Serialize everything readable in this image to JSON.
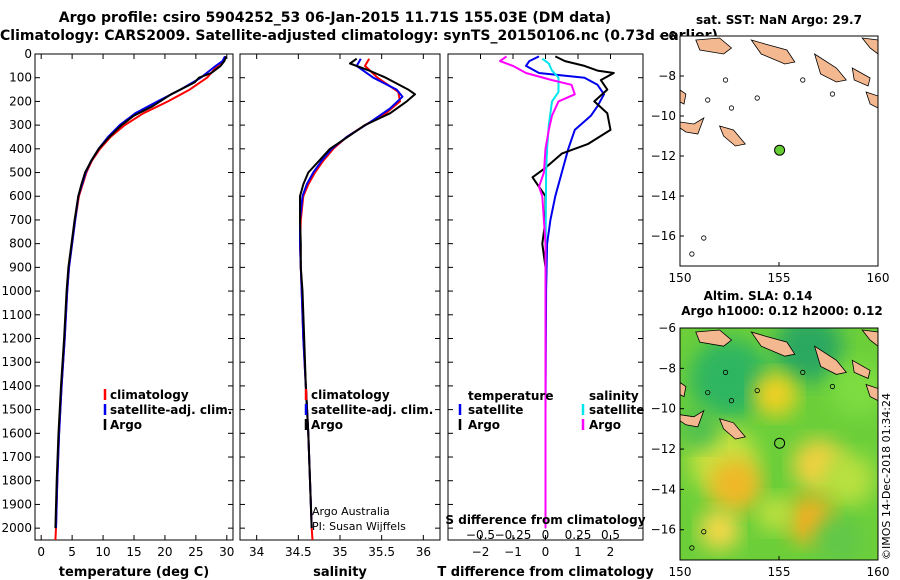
{
  "header": {
    "line1": "Argo profile: csiro 5904252_53 06-Jan-2015 11.71S 155.03E (DM data)",
    "line2": "Climatology: CARS2009. Satellite-adjusted climatology: synTS_20150106.nc (0.73d earlier)"
  },
  "colors": {
    "climatology": "#ff0000",
    "satellite": "#0000ee",
    "argo": "#000000",
    "satellite_light": "#00e5ee",
    "argo_diff": "#ff00ff",
    "land": "#f4b890"
  },
  "chart_data": [
    {
      "id": "temperature",
      "type": "line",
      "xlabel": "temperature (deg C)",
      "ylabel": "",
      "xlim": [
        -1,
        31
      ],
      "ylim": [
        2050,
        0
      ],
      "xticks": [
        0,
        5,
        10,
        15,
        20,
        25,
        30
      ],
      "yticks": [
        0,
        100,
        200,
        300,
        400,
        500,
        600,
        700,
        800,
        900,
        1000,
        1100,
        1200,
        1300,
        1400,
        1500,
        1600,
        1700,
        1800,
        1900,
        2000
      ],
      "legend": [
        "climatology",
        "satellite-adj. clim.",
        "Argo"
      ],
      "series": [
        {
          "name": "climatology",
          "color": "#ff0000",
          "points": [
            [
              29.8,
              10
            ],
            [
              29.4,
              30
            ],
            [
              28.5,
              50
            ],
            [
              26.8,
              100
            ],
            [
              24,
              150
            ],
            [
              20.5,
              200
            ],
            [
              16.5,
              250
            ],
            [
              13.5,
              300
            ],
            [
              11.2,
              350
            ],
            [
              9.5,
              400
            ],
            [
              8.2,
              450
            ],
            [
              7.3,
              500
            ],
            [
              6.7,
              550
            ],
            [
              6.1,
              600
            ],
            [
              5.5,
              700
            ],
            [
              5,
              800
            ],
            [
              4.5,
              900
            ],
            [
              4.2,
              1000
            ],
            [
              3.8,
              1200
            ],
            [
              3.3,
              1400
            ],
            [
              2.9,
              1600
            ],
            [
              2.6,
              1800
            ],
            [
              2.4,
              2000
            ],
            [
              2.3,
              2050
            ]
          ]
        },
        {
          "name": "satellite-adj. clim.",
          "color": "#0000ee",
          "points": [
            [
              29.7,
              10
            ],
            [
              29.3,
              30
            ],
            [
              28.2,
              50
            ],
            [
              25.8,
              100
            ],
            [
              22.5,
              150
            ],
            [
              18.8,
              200
            ],
            [
              15.2,
              250
            ],
            [
              12.7,
              300
            ],
            [
              10.8,
              350
            ],
            [
              9.3,
              400
            ],
            [
              8.1,
              450
            ],
            [
              7.2,
              500
            ],
            [
              6.6,
              550
            ],
            [
              6.0,
              600
            ],
            [
              5.5,
              700
            ],
            [
              5,
              800
            ],
            [
              4.5,
              900
            ],
            [
              4.2,
              1000
            ],
            [
              3.8,
              1200
            ],
            [
              3.3,
              1400
            ],
            [
              2.9,
              1600
            ],
            [
              2.6,
              1800
            ],
            [
              2.4,
              2000
            ]
          ]
        },
        {
          "name": "Argo",
          "color": "#000000",
          "points": [
            [
              29.9,
              10
            ],
            [
              29.6,
              30
            ],
            [
              29,
              50
            ],
            [
              27.5,
              80
            ],
            [
              25.5,
              100
            ],
            [
              24.8,
              120
            ],
            [
              21,
              170
            ],
            [
              18,
              220
            ],
            [
              15,
              260
            ],
            [
              13,
              300
            ],
            [
              11,
              350
            ],
            [
              9.3,
              400
            ],
            [
              8.1,
              450
            ],
            [
              7.1,
              500
            ],
            [
              6.5,
              550
            ],
            [
              6.0,
              600
            ],
            [
              5.4,
              700
            ],
            [
              4.9,
              800
            ],
            [
              4.4,
              900
            ],
            [
              4.1,
              1000
            ],
            [
              3.7,
              1200
            ],
            [
              3.2,
              1400
            ],
            [
              2.8,
              1600
            ],
            [
              2.5,
              1800
            ],
            [
              2.3,
              2000
            ]
          ]
        }
      ]
    },
    {
      "id": "salinity",
      "type": "line",
      "xlabel": "salinity",
      "xlim": [
        33.8,
        36.2
      ],
      "ylim": [
        2050,
        0
      ],
      "xticks": [
        34,
        34.5,
        35,
        35.5,
        36
      ],
      "legend": [
        "climatology",
        "satellite-adj. clim.",
        "Argo"
      ],
      "series": [
        {
          "name": "climatology",
          "color": "#ff0000",
          "points": [
            [
              35.35,
              20
            ],
            [
              35.3,
              50
            ],
            [
              35.45,
              100
            ],
            [
              35.7,
              160
            ],
            [
              35.72,
              200
            ],
            [
              35.55,
              250
            ],
            [
              35.3,
              300
            ],
            [
              35.08,
              350
            ],
            [
              34.92,
              400
            ],
            [
              34.8,
              450
            ],
            [
              34.7,
              500
            ],
            [
              34.62,
              550
            ],
            [
              34.56,
              600
            ],
            [
              34.53,
              700
            ],
            [
              34.52,
              800
            ],
            [
              34.53,
              900
            ],
            [
              34.54,
              1000
            ],
            [
              34.56,
              1200
            ],
            [
              34.59,
              1400
            ],
            [
              34.62,
              1600
            ],
            [
              34.64,
              1800
            ],
            [
              34.66,
              2000
            ],
            [
              34.67,
              2050
            ]
          ]
        },
        {
          "name": "satellite-adj. clim.",
          "color": "#0000ee",
          "points": [
            [
              35.25,
              20
            ],
            [
              35.2,
              50
            ],
            [
              35.4,
              100
            ],
            [
              35.68,
              150
            ],
            [
              35.75,
              180
            ],
            [
              35.6,
              230
            ],
            [
              35.35,
              290
            ],
            [
              35.08,
              350
            ],
            [
              34.9,
              400
            ],
            [
              34.78,
              450
            ],
            [
              34.68,
              500
            ],
            [
              34.6,
              550
            ],
            [
              34.55,
              600
            ],
            [
              34.52,
              700
            ],
            [
              34.52,
              800
            ],
            [
              34.53,
              900
            ],
            [
              34.54,
              1000
            ],
            [
              34.56,
              1200
            ],
            [
              34.59,
              1400
            ],
            [
              34.62,
              1600
            ],
            [
              34.64,
              1800
            ],
            [
              34.66,
              2000
            ]
          ]
        },
        {
          "name": "Argo",
          "color": "#000000",
          "points": [
            [
              35.2,
              20
            ],
            [
              35.12,
              40
            ],
            [
              35.35,
              70
            ],
            [
              35.55,
              100
            ],
            [
              35.82,
              150
            ],
            [
              35.9,
              170
            ],
            [
              35.8,
              200
            ],
            [
              35.6,
              250
            ],
            [
              35.3,
              300
            ],
            [
              35.05,
              360
            ],
            [
              34.88,
              400
            ],
            [
              34.75,
              450
            ],
            [
              34.62,
              500
            ],
            [
              34.56,
              550
            ],
            [
              34.52,
              600
            ],
            [
              34.52,
              700
            ],
            [
              34.53,
              800
            ],
            [
              34.53,
              900
            ],
            [
              34.55,
              1000
            ],
            [
              34.57,
              1200
            ],
            [
              34.59,
              1400
            ],
            [
              34.62,
              1600
            ],
            [
              34.64,
              1800
            ],
            [
              34.66,
              2000
            ]
          ]
        }
      ],
      "annotation": [
        "Argo Australia",
        "PI: Susan Wijffels"
      ]
    },
    {
      "id": "difference",
      "type": "line",
      "xlabel": "T difference from climatology",
      "xlabel_top": "S difference from climatology",
      "xlim": [
        -3,
        3
      ],
      "ylim": [
        2050,
        0
      ],
      "xticks": [
        -2,
        -1,
        0,
        1,
        2
      ],
      "xticks_s": [
        "-0.5",
        "-0.25",
        "0",
        "0.25",
        "0.5"
      ],
      "legend_temperature_title": "temperature",
      "legend_salinity_title": "salinity",
      "legend_labels": [
        "satellite",
        "Argo"
      ],
      "series": [
        {
          "name": "temperature satellite",
          "color": "#0000ee",
          "points": [
            [
              -0.2,
              10
            ],
            [
              -0.5,
              30
            ],
            [
              -0.6,
              50
            ],
            [
              -0.2,
              80
            ],
            [
              1.2,
              100
            ],
            [
              1.6,
              130
            ],
            [
              1.8,
              170
            ],
            [
              1.6,
              220
            ],
            [
              1.4,
              260
            ],
            [
              0.9,
              320
            ],
            [
              0.7,
              400
            ],
            [
              0.5,
              500
            ],
            [
              0.3,
              600
            ],
            [
              0.15,
              700
            ],
            [
              0.05,
              800
            ],
            [
              0.02,
              1000
            ],
            [
              0,
              1500
            ],
            [
              0,
              2000
            ]
          ]
        },
        {
          "name": "temperature Argo",
          "color": "#000000",
          "points": [
            [
              0.3,
              10
            ],
            [
              0.6,
              30
            ],
            [
              1.2,
              50
            ],
            [
              1.6,
              70
            ],
            [
              2.1,
              80
            ],
            [
              1.7,
              110
            ],
            [
              1.9,
              150
            ],
            [
              1.5,
              200
            ],
            [
              1.9,
              250
            ],
            [
              2,
              320
            ],
            [
              1.3,
              380
            ],
            [
              0.5,
              420
            ],
            [
              0,
              480
            ],
            [
              -0.4,
              520
            ],
            [
              -0.2,
              560
            ],
            [
              0,
              600
            ],
            [
              0,
              700
            ],
            [
              -0.1,
              800
            ],
            [
              0,
              900
            ],
            [
              0,
              1000
            ],
            [
              0,
              1500
            ],
            [
              0,
              2000
            ]
          ]
        },
        {
          "name": "salinity satellite",
          "color": "#00e5ee",
          "points": [
            [
              -0.1,
              20
            ],
            [
              0.1,
              40
            ],
            [
              0.2,
              70
            ],
            [
              0.4,
              100
            ],
            [
              0.4,
              160
            ],
            [
              0.2,
              200
            ],
            [
              0.1,
              300
            ],
            [
              0.05,
              400
            ],
            [
              0.02,
              500
            ],
            [
              0.01,
              700
            ],
            [
              0,
              1000
            ],
            [
              0,
              1500
            ],
            [
              0,
              2000
            ]
          ]
        },
        {
          "name": "salinity Argo",
          "color": "#ff00ff",
          "points": [
            [
              -1.2,
              10
            ],
            [
              -1.4,
              30
            ],
            [
              -1,
              50
            ],
            [
              -0.6,
              80
            ],
            [
              0.2,
              110
            ],
            [
              0.8,
              130
            ],
            [
              0.9,
              170
            ],
            [
              0.4,
              200
            ],
            [
              0.2,
              260
            ],
            [
              0.1,
              320
            ],
            [
              0,
              400
            ],
            [
              -0.05,
              500
            ],
            [
              -0.2,
              560
            ],
            [
              -0.1,
              600
            ],
            [
              -0.05,
              700
            ],
            [
              0,
              800
            ],
            [
              0,
              1000
            ],
            [
              0,
              1500
            ],
            [
              0,
              2000
            ]
          ]
        }
      ]
    },
    {
      "id": "sst_map",
      "type": "map",
      "title": "sat. SST: NaN Argo: 29.7",
      "xlim": [
        150,
        160
      ],
      "ylim": [
        -17.5,
        -6
      ],
      "xticks": [
        150,
        155,
        160
      ],
      "yticks": [
        -6,
        -8,
        -10,
        -12,
        -14,
        -16
      ],
      "marker": [
        155.03,
        -11.71
      ]
    },
    {
      "id": "sla_map",
      "type": "map",
      "title_line1": "Altim. SLA: 0.14",
      "title_line2": "Argo h1000: 0.12 h2000: 0.12",
      "xlim": [
        150,
        160
      ],
      "ylim": [
        -17.5,
        -6
      ],
      "xticks": [
        150,
        155,
        160
      ],
      "yticks": [
        -6,
        -8,
        -10,
        -12,
        -14,
        -16
      ],
      "marker": [
        155.03,
        -11.71
      ]
    }
  ],
  "footer": {
    "credit": "©IMOS 14-Dec-2018 01:34:24"
  }
}
